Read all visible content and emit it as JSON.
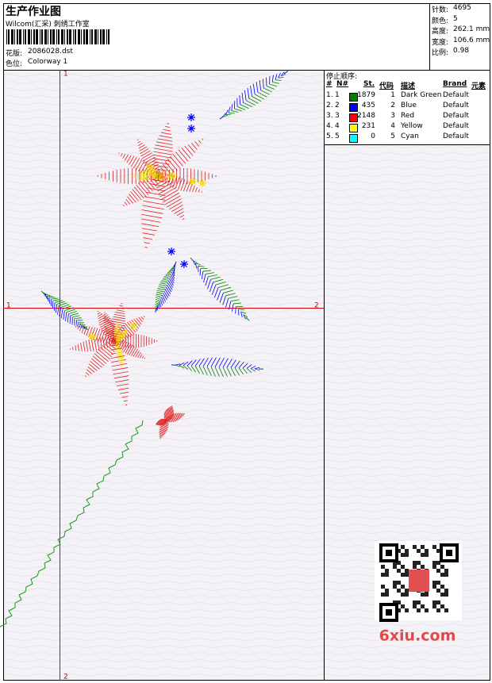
{
  "header": {
    "title": "生产作业图",
    "subtitle": "Wilcom(汇采) 刺绣工作室",
    "fields": [
      {
        "label": "花版:",
        "value": "2086028.dst"
      },
      {
        "label": "色位:",
        "value": "Colorway 1"
      }
    ]
  },
  "stats": [
    {
      "label": "针数:",
      "value": "4695"
    },
    {
      "label": "颜色:",
      "value": "5"
    },
    {
      "label": "高度:",
      "value": "262.1 mm"
    },
    {
      "label": "宽度:",
      "value": "106.6 mm"
    },
    {
      "label": "比例:",
      "value": "0.98"
    }
  ],
  "stop_sequence": {
    "title": "停止顺序:",
    "columns": [
      "#",
      "N#",
      "St.",
      "代码",
      "描述",
      "Brand",
      "元素"
    ],
    "rows": [
      {
        "index": "1.",
        "needle": "1",
        "color": "#008000",
        "stitches": "1879",
        "code": "1",
        "description": "Dark Green",
        "brand": "Default"
      },
      {
        "index": "2.",
        "needle": "2",
        "color": "#0000ff",
        "stitches": "435",
        "code": "2",
        "description": "Blue",
        "brand": "Default"
      },
      {
        "index": "3.",
        "needle": "3",
        "color": "#ff0000",
        "stitches": "2148",
        "code": "3",
        "description": "Red",
        "brand": "Default"
      },
      {
        "index": "4.",
        "needle": "4",
        "color": "#ffff00",
        "stitches": "231",
        "code": "4",
        "description": "Yellow",
        "brand": "Default"
      },
      {
        "index": "5.",
        "needle": "5",
        "color": "#00ffff",
        "stitches": "0",
        "code": "5",
        "description": "Cyan",
        "brand": "Default"
      }
    ]
  },
  "guides": {
    "vertical_top": "1",
    "vertical_bottom": "2",
    "horizontal_left": "1",
    "horizontal_right": "2"
  },
  "watermark": "6xiu.com"
}
